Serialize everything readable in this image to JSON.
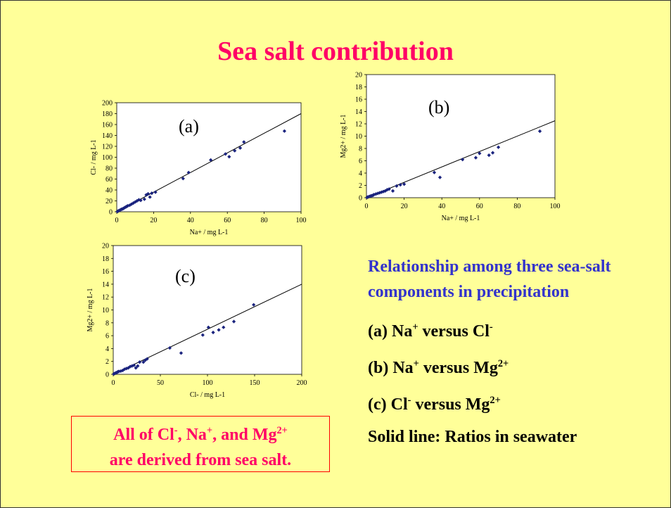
{
  "title": "Sea salt contribution",
  "chart_data": [
    {
      "type": "scatter",
      "panel_label": "(a)",
      "xlabel": "Na+ / mg L-1",
      "ylabel": "Cl- / mg L-1",
      "xlim": [
        0,
        100
      ],
      "ylim": [
        0,
        200
      ],
      "xticks": [
        0,
        20,
        40,
        60,
        80,
        100
      ],
      "yticks": [
        0,
        20,
        40,
        60,
        80,
        100,
        120,
        140,
        160,
        180,
        200
      ],
      "ratio_line": {
        "slope": 1.8
      },
      "points": [
        [
          0.3,
          0.5
        ],
        [
          0.6,
          1
        ],
        [
          1,
          1.8
        ],
        [
          1.5,
          2.6
        ],
        [
          2,
          3.6
        ],
        [
          2.5,
          4.5
        ],
        [
          3,
          5
        ],
        [
          3.5,
          6
        ],
        [
          4,
          7
        ],
        [
          4.5,
          8
        ],
        [
          5,
          9
        ],
        [
          5.5,
          10
        ],
        [
          6,
          11
        ],
        [
          7,
          12
        ],
        [
          8,
          14
        ],
        [
          9,
          16
        ],
        [
          10,
          18
        ],
        [
          11,
          20
        ],
        [
          12,
          22
        ],
        [
          13,
          21
        ],
        [
          15,
          23
        ],
        [
          16,
          31
        ],
        [
          17,
          33
        ],
        [
          18,
          27
        ],
        [
          19,
          34
        ],
        [
          21,
          36
        ],
        [
          36,
          61
        ],
        [
          39,
          72
        ],
        [
          51,
          95
        ],
        [
          59,
          106
        ],
        [
          61,
          101
        ],
        [
          64,
          112
        ],
        [
          67,
          117
        ],
        [
          69,
          128
        ],
        [
          91,
          148
        ]
      ]
    },
    {
      "type": "scatter",
      "panel_label": "(b)",
      "xlabel": "Na+ / mg L-1",
      "ylabel": "Mg2+ / mg L-1",
      "xlim": [
        0,
        100
      ],
      "ylim": [
        0,
        20
      ],
      "xticks": [
        0,
        20,
        40,
        60,
        80,
        100
      ],
      "yticks": [
        0,
        2,
        4,
        6,
        8,
        10,
        12,
        14,
        16,
        18,
        20
      ],
      "ratio_line": {
        "slope": 0.125
      },
      "points": [
        [
          0.3,
          0.05
        ],
        [
          0.6,
          0.1
        ],
        [
          1,
          0.12
        ],
        [
          1.5,
          0.2
        ],
        [
          2,
          0.25
        ],
        [
          2.5,
          0.3
        ],
        [
          3,
          0.35
        ],
        [
          3.5,
          0.4
        ],
        [
          4,
          0.5
        ],
        [
          5,
          0.6
        ],
        [
          6,
          0.7
        ],
        [
          7,
          0.8
        ],
        [
          8,
          0.9
        ],
        [
          9,
          1
        ],
        [
          10,
          1.1
        ],
        [
          11,
          1.3
        ],
        [
          12,
          1.4
        ],
        [
          14,
          1.1
        ],
        [
          16,
          1.9
        ],
        [
          18,
          2.1
        ],
        [
          20,
          2.2
        ],
        [
          36,
          4.1
        ],
        [
          39,
          3.3
        ],
        [
          51,
          6.2
        ],
        [
          58,
          6.5
        ],
        [
          60,
          7.2
        ],
        [
          65,
          6.9
        ],
        [
          67,
          7.3
        ],
        [
          70,
          8.2
        ],
        [
          92,
          10.8
        ]
      ]
    },
    {
      "type": "scatter",
      "panel_label": "(c)",
      "xlabel": "Cl- / mg L-1",
      "ylabel": "Mg2+ / mg L-1",
      "xlim": [
        0,
        200
      ],
      "ylim": [
        0,
        20
      ],
      "xticks": [
        0,
        50,
        100,
        150,
        200
      ],
      "yticks": [
        0,
        2,
        4,
        6,
        8,
        10,
        12,
        14,
        16,
        18,
        20
      ],
      "ratio_line": {
        "slope": 0.07
      },
      "points": [
        [
          0.5,
          0.05
        ],
        [
          1,
          0.1
        ],
        [
          2,
          0.15
        ],
        [
          3,
          0.25
        ],
        [
          4,
          0.3
        ],
        [
          5,
          0.4
        ],
        [
          6,
          0.45
        ],
        [
          8,
          0.5
        ],
        [
          10,
          0.6
        ],
        [
          12,
          0.8
        ],
        [
          14,
          0.9
        ],
        [
          16,
          1
        ],
        [
          18,
          1.2
        ],
        [
          20,
          1.3
        ],
        [
          22,
          1.4
        ],
        [
          24,
          1
        ],
        [
          26,
          1.3
        ],
        [
          28,
          1.9
        ],
        [
          32,
          1.9
        ],
        [
          34,
          2.2
        ],
        [
          36,
          2.4
        ],
        [
          60,
          4.1
        ],
        [
          72,
          3.3
        ],
        [
          95,
          6.1
        ],
        [
          101,
          7.3
        ],
        [
          106,
          6.5
        ],
        [
          112,
          6.9
        ],
        [
          117,
          7.3
        ],
        [
          128,
          8.2
        ],
        [
          149,
          10.8
        ]
      ]
    }
  ],
  "side": {
    "relationship": "Relationship among three sea-salt components in precipitation",
    "items": [
      {
        "label": "(a) Na",
        "sup1": "+",
        "mid": " versus Cl",
        "sup2": "-"
      },
      {
        "label": "(b) Na",
        "sup1": "+",
        "mid": " versus Mg",
        "sup2": "2+"
      },
      {
        "label": "(c) Cl",
        "sup1": "-",
        "mid": " versus Mg",
        "sup2": "2+"
      }
    ],
    "solid_line": "Solid line: Ratios in seawater"
  },
  "note": {
    "t1": "All of Cl",
    "s1": "-",
    "t2": ", Na",
    "s2": "+",
    "t3": ", and Mg",
    "s3": "2+",
    "line2": "are derived from sea salt."
  }
}
